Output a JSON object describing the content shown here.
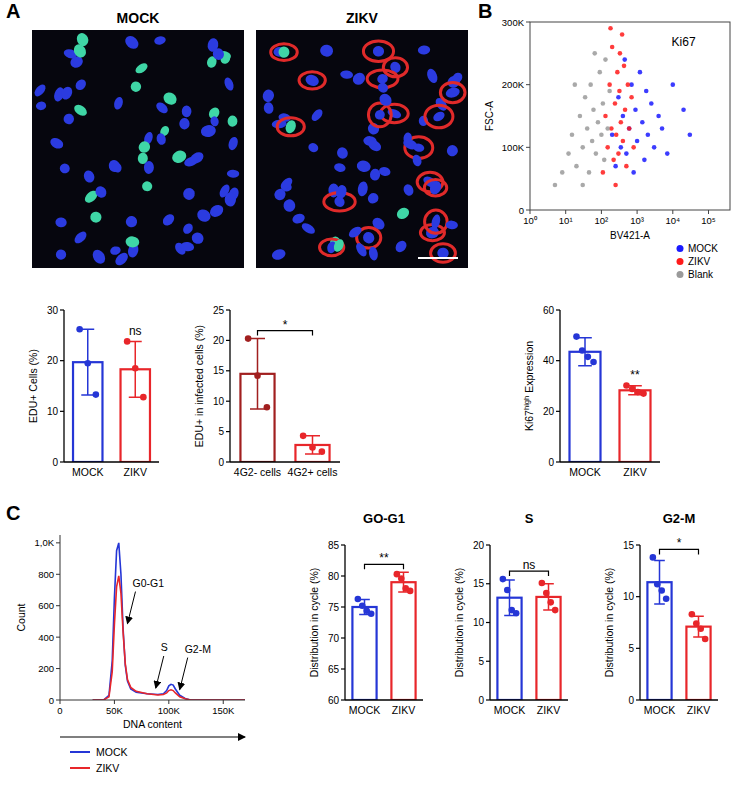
{
  "chart_data": [
    {
      "type": "image",
      "panel": "A",
      "title": "MOCK"
    },
    {
      "type": "image",
      "title": "ZIKV"
    },
    {
      "type": "scatter",
      "panel": "B",
      "log": "x",
      "xlabel": "BV421-A",
      "ylabel": "FSC-A",
      "xlim": [
        1,
        400000
      ],
      "ylim": [
        0,
        300000
      ],
      "xticks": [
        {
          "value": 1,
          "label": "10⁰"
        },
        {
          "value": 10,
          "label": "10¹"
        },
        {
          "value": 100,
          "label": "10²"
        },
        {
          "value": 1000,
          "label": "10³"
        },
        {
          "value": 10000,
          "label": "10⁴"
        },
        {
          "value": 100000,
          "label": "10⁵"
        }
      ],
      "yticks": [
        0,
        {
          "value": 100000,
          "label": "100K"
        },
        {
          "value": 200000,
          "label": "200K"
        },
        {
          "value": 300000,
          "label": "300K"
        }
      ],
      "legend": "bottom-right",
      "annotations": [
        {
          "text": "Ki67",
          "x": 20000,
          "y": 262000
        }
      ],
      "series": [
        {
          "name": "MOCK",
          "color": "#1a1aff",
          "x": [
            200,
            250,
            300,
            350,
            400,
            450,
            500,
            600,
            700,
            800,
            900,
            1000,
            1200,
            1400,
            1600,
            1800,
            2000,
            2500,
            3000,
            4000,
            5000,
            7000,
            10000,
            20000,
            30000
          ],
          "values": [
            120000,
            70000,
            180000,
            100000,
            150000,
            240000,
            90000,
            130000,
            200000,
            60000,
            160000,
            110000,
            220000,
            140000,
            80000,
            190000,
            120000,
            170000,
            100000,
            150000,
            130000,
            90000,
            200000,
            160000,
            120000
          ]
        },
        {
          "name": "ZIKV",
          "color": "#ff1a1a",
          "x": [
            110,
            130,
            150,
            170,
            190,
            200,
            220,
            240,
            260,
            280,
            300,
            320,
            350,
            380,
            400,
            430,
            460,
            500,
            550,
            600,
            700,
            800,
            250,
            330,
            180
          ],
          "values": [
            60000,
            150000,
            100000,
            200000,
            130000,
            260000,
            80000,
            170000,
            120000,
            220000,
            90000,
            190000,
            140000,
            280000,
            110000,
            230000,
            160000,
            70000,
            200000,
            130000,
            180000,
            100000,
            40000,
            250000,
            290000
          ]
        },
        {
          "name": "Blank",
          "color": "#9a9a9a",
          "x": [
            5,
            8,
            12,
            15,
            20,
            25,
            30,
            35,
            40,
            45,
            50,
            55,
            60,
            70,
            80,
            90,
            100,
            110,
            120,
            130,
            150,
            170,
            30,
            18,
            65
          ],
          "values": [
            40000,
            60000,
            90000,
            120000,
            70000,
            150000,
            100000,
            180000,
            130000,
            60000,
            200000,
            110000,
            160000,
            90000,
            140000,
            220000,
            120000,
            170000,
            80000,
            240000,
            130000,
            190000,
            40000,
            200000,
            250000
          ]
        }
      ]
    },
    {
      "type": "bar",
      "categories": [
        "MOCK",
        "ZIKV"
      ],
      "values": [
        19.7,
        18.3
      ],
      "errors": [
        6.5,
        5.5
      ],
      "points": [
        [
          26.2,
          19.5,
          13.3
        ],
        [
          23.8,
          18.5,
          12.8
        ]
      ],
      "colors": [
        "#2536d6",
        "#e8262a"
      ],
      "ylabel": "EDU+ Cells (%)",
      "ylim": [
        0,
        30
      ],
      "yticks": [
        0,
        10,
        20,
        30
      ],
      "annotation": {
        "text": "ns",
        "over": "ZIKV"
      }
    },
    {
      "type": "bar",
      "categories": [
        "4G2- cells",
        "4G2+ cells"
      ],
      "values": [
        14.5,
        2.8
      ],
      "errors": [
        5.8,
        1.5
      ],
      "points": [
        [
          20.3,
          14.2,
          9.0
        ],
        [
          4.3,
          2.4,
          1.7
        ]
      ],
      "colors": [
        "#a11f1f",
        "#e8262a"
      ],
      "ylabel": "EDU+ in infected cells (%)",
      "ylim": [
        0,
        25
      ],
      "yticks": [
        0,
        5,
        10,
        15,
        20,
        25
      ],
      "annotation": {
        "text": "*",
        "between": [
          "4G2- cells",
          "4G2+ cells"
        ]
      }
    },
    {
      "type": "bar",
      "categories": [
        "MOCK",
        "ZIKV"
      ],
      "values": [
        43.5,
        28.3
      ],
      "errors": [
        5.5,
        1.8
      ],
      "points": [
        [
          49.5,
          44,
          41.5,
          39.5
        ],
        [
          30.2,
          28.8,
          27.6,
          27
        ]
      ],
      "colors": [
        "#2536d6",
        "#e8262a"
      ],
      "ylabel": [
        "Ki67",
        "high",
        " Expression"
      ],
      "ylim": [
        0,
        60
      ],
      "yticks": [
        0,
        20,
        40,
        60
      ],
      "annotation": {
        "text": "**",
        "over": "ZIKV"
      }
    },
    {
      "type": "line",
      "panel": "C",
      "xlabel": "DNA content",
      "ylabel": "Count",
      "xlim": [
        0,
        170000
      ],
      "ylim": [
        0,
        1050
      ],
      "xticks": [
        0,
        {
          "value": 50000,
          "label": "50K"
        },
        {
          "value": 100000,
          "label": "100K"
        },
        {
          "value": 150000,
          "label": "150K"
        }
      ],
      "yticks": [
        0,
        200,
        400,
        600,
        800,
        {
          "value": 1000,
          "label": "1,0K"
        }
      ],
      "legend": "bottom",
      "x": [
        30000,
        40000,
        45000,
        48000,
        50000,
        52000,
        54000,
        56000,
        58000,
        60000,
        62000,
        65000,
        70000,
        80000,
        90000,
        95000,
        98000,
        100000,
        102000,
        104000,
        106000,
        110000,
        115000,
        120000,
        140000,
        170000
      ],
      "series": [
        {
          "name": "MOCK",
          "color": "#2536d6",
          "values": [
            0,
            0,
            30,
            250,
            650,
            950,
            1000,
            800,
            450,
            220,
            120,
            70,
            50,
            40,
            35,
            40,
            60,
            90,
            100,
            95,
            70,
            30,
            10,
            0,
            0,
            0
          ]
        },
        {
          "name": "ZIKV",
          "color": "#e8262a",
          "values": [
            0,
            0,
            20,
            180,
            480,
            720,
            790,
            680,
            430,
            230,
            130,
            80,
            55,
            40,
            32,
            35,
            45,
            60,
            65,
            60,
            45,
            20,
            8,
            0,
            0,
            0
          ]
        }
      ],
      "annotations": [
        {
          "text": "G0-G1",
          "x": 62000,
          "y": 480
        },
        {
          "text": "S",
          "x": 88000,
          "y": 70
        },
        {
          "text": "G2-M",
          "x": 110000,
          "y": 60
        }
      ]
    },
    {
      "type": "bar",
      "title": "GO-G1",
      "categories": [
        "MOCK",
        "ZIKV"
      ],
      "values": [
        75,
        79
      ],
      "errors": [
        1.2,
        1.6
      ],
      "points": [
        [
          76.3,
          75.2,
          74.4,
          73.9
        ],
        [
          80.3,
          79.6,
          78,
          77.6
        ]
      ],
      "colors": [
        "#2536d6",
        "#e8262a"
      ],
      "ylabel": "Distribution in cycle (%)",
      "ylim": [
        60,
        85
      ],
      "yticks": [
        60,
        65,
        70,
        75,
        80,
        85
      ],
      "annotation": {
        "text": "**",
        "between": [
          "MOCK",
          "ZIKV"
        ]
      }
    },
    {
      "type": "bar",
      "title": "S",
      "categories": [
        "MOCK",
        "ZIKV"
      ],
      "values": [
        13.2,
        13.3
      ],
      "errors": [
        2.3,
        1.7
      ],
      "points": [
        [
          15.6,
          14.2,
          11.6,
          11.2
        ],
        [
          15.1,
          13.8,
          12.6,
          11.6
        ]
      ],
      "colors": [
        "#2536d6",
        "#e8262a"
      ],
      "ylabel": "Distribution in cycle (%)",
      "ylim": [
        0,
        20
      ],
      "yticks": [
        0,
        5,
        10,
        15,
        20
      ],
      "annotation": {
        "text": "ns",
        "between": [
          "MOCK",
          "ZIKV"
        ]
      }
    },
    {
      "type": "bar",
      "title": "G2-M",
      "categories": [
        "MOCK",
        "ZIKV"
      ],
      "values": [
        11.4,
        7.1
      ],
      "errors": [
        2.1,
        1.0
      ],
      "points": [
        [
          13.8,
          11.2,
          10.6,
          9.8
        ],
        [
          8.3,
          7.4,
          6.9,
          5.9
        ]
      ],
      "colors": [
        "#2536d6",
        "#e8262a"
      ],
      "ylabel": "Distribution in cycle (%)",
      "ylim": [
        0,
        15
      ],
      "yticks": [
        0,
        5,
        10,
        15
      ],
      "annotation": {
        "text": "*",
        "between": [
          "MOCK",
          "ZIKV"
        ]
      }
    }
  ]
}
